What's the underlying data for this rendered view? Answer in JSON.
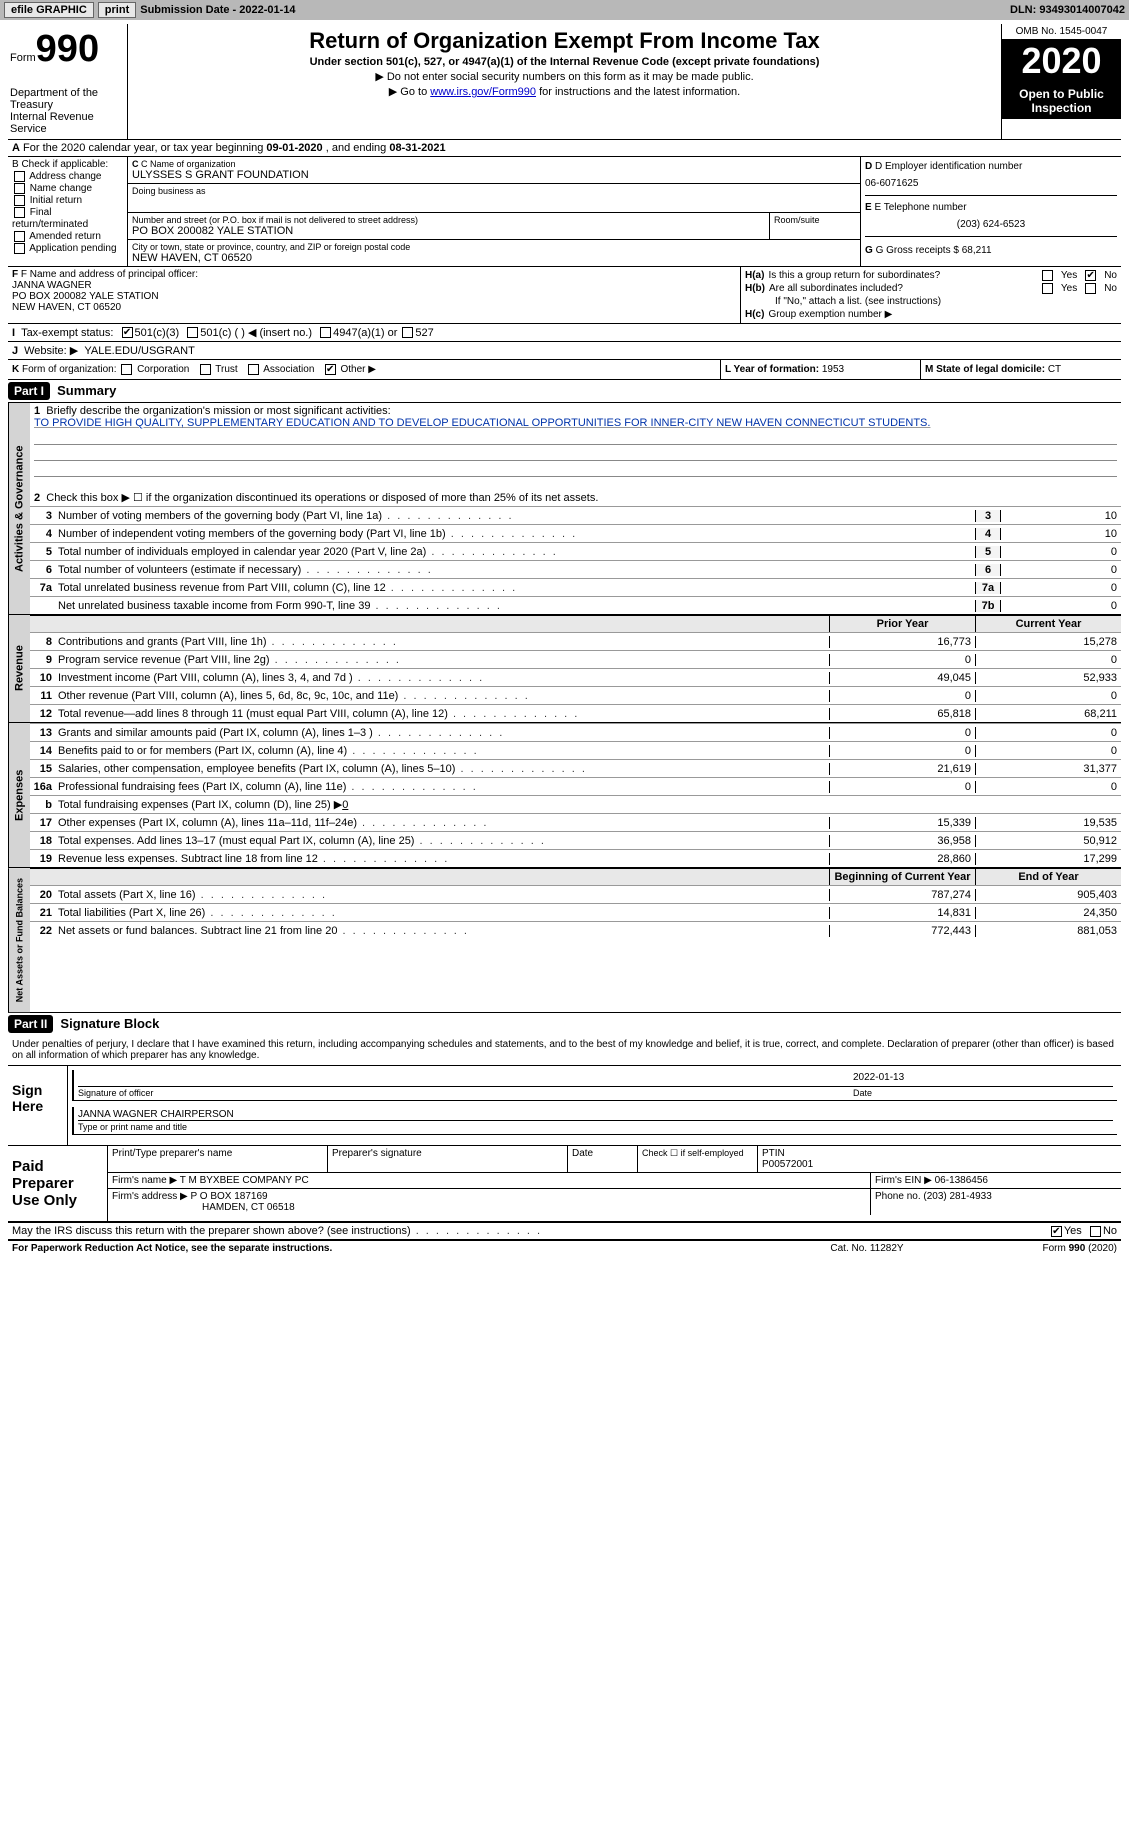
{
  "topbar": {
    "efile": "efile GRAPHIC",
    "print": "print",
    "submission_label": "Submission Date - ",
    "submission_date": "2022-01-14",
    "dln_label": "DLN: ",
    "dln": "93493014007042"
  },
  "header": {
    "form_word": "Form",
    "form_num": "990",
    "dept": "Department of the Treasury\nInternal Revenue Service",
    "title": "Return of Organization Exempt From Income Tax",
    "sub1": "Under section 501(c), 527, or 4947(a)(1) of the Internal Revenue Code (except private foundations)",
    "sub2": "▶ Do not enter social security numbers on this form as it may be made public.",
    "sub3_pre": "▶ Go to ",
    "sub3_link": "www.irs.gov/Form990",
    "sub3_post": " for instructions and the latest information.",
    "omb_label": "OMB No. ",
    "omb": "1545-0047",
    "year": "2020",
    "inspect": "Open to Public Inspection"
  },
  "row_a": {
    "a_bold": "A",
    "text1": " For the 2020 calendar year, or tax year beginning ",
    "begin": "09-01-2020",
    "text2": " , and ending ",
    "end": "08-31-2021"
  },
  "col_b": {
    "hdr": "B Check if applicable:",
    "items": [
      "Address change",
      "Name change",
      "Initial return",
      "Final return/terminated",
      "Amended return",
      "Application pending"
    ]
  },
  "col_c": {
    "name_lbl": "C Name of organization",
    "name": "ULYSSES S GRANT FOUNDATION",
    "dba_lbl": "Doing business as",
    "dba": "",
    "street_lbl": "Number and street (or P.O. box if mail is not delivered to street address)",
    "room_lbl": "Room/suite",
    "street": "PO BOX 200082 YALE STATION",
    "city_lbl": "City or town, state or province, country, and ZIP or foreign postal code",
    "city": "NEW HAVEN, CT  06520"
  },
  "col_d": {
    "ein_lbl": "D Employer identification number",
    "ein": "06-6071625",
    "phone_lbl": "E Telephone number",
    "phone": "(203) 624-6523",
    "gross_lbl": "G Gross receipts $ ",
    "gross": "68,211"
  },
  "row_fh": {
    "f_lbl": "F Name and address of principal officer:",
    "f_name": "JANNA WAGNER",
    "f_addr1": "PO BOX 200082 YALE STATION",
    "f_addr2": "NEW HAVEN, CT  06520",
    "h_a": "H(a)",
    "h_a_txt": "Is this a group return for subordinates?",
    "h_b": "H(b)",
    "h_b_txt": "Are all subordinates included?",
    "h_note": "If \"No,\" attach a list. (see instructions)",
    "h_c": "H(c)",
    "h_c_txt": "Group exemption number ▶",
    "yes": "Yes",
    "no": "No"
  },
  "row_i": {
    "lbl": "I",
    "txt": "Tax-exempt status:",
    "opt1": "501(c)(3)",
    "opt2": "501(c) (   ) ◀ (insert no.)",
    "opt3": "4947(a)(1) or",
    "opt4": "527"
  },
  "row_j": {
    "lbl": "J",
    "txt": "Website: ▶",
    "val": "YALE.EDU/USGRANT"
  },
  "row_k": {
    "lbl": "K",
    "txt": "Form of organization:",
    "opts": [
      "Corporation",
      "Trust",
      "Association",
      "Other ▶"
    ],
    "l_lbl": "L Year of formation: ",
    "l_val": "1953",
    "m_lbl": "M State of legal domicile: ",
    "m_val": "CT"
  },
  "part1": {
    "hdr": "Part I",
    "title": "Summary",
    "side_gov": "Activities & Governance",
    "side_rev": "Revenue",
    "side_exp": "Expenses",
    "side_net": "Net Assets or Fund Balances",
    "q1": "Briefly describe the organization's mission or most significant activities:",
    "mission": "TO PROVIDE HIGH QUALITY, SUPPLEMENTARY EDUCATION AND TO DEVELOP EDUCATIONAL OPPORTUNITIES FOR INNER-CITY NEW HAVEN CONNECTICUT STUDENTS.",
    "q2": "Check this box ▶ ☐ if the organization discontinued its operations or disposed of more than 25% of its net assets.",
    "lines_gov": [
      {
        "n": "3",
        "d": "Number of voting members of the governing body (Part VI, line 1a)",
        "c": "3",
        "v": "10"
      },
      {
        "n": "4",
        "d": "Number of independent voting members of the governing body (Part VI, line 1b)",
        "c": "4",
        "v": "10"
      },
      {
        "n": "5",
        "d": "Total number of individuals employed in calendar year 2020 (Part V, line 2a)",
        "c": "5",
        "v": "0"
      },
      {
        "n": "6",
        "d": "Total number of volunteers (estimate if necessary)",
        "c": "6",
        "v": "0"
      },
      {
        "n": "7a",
        "d": "Total unrelated business revenue from Part VIII, column (C), line 12",
        "c": "7a",
        "v": "0"
      },
      {
        "n": "",
        "d": "Net unrelated business taxable income from Form 990-T, line 39",
        "c": "7b",
        "v": "0"
      }
    ],
    "col_prior": "Prior Year",
    "col_current": "Current Year",
    "lines_rev": [
      {
        "n": "8",
        "d": "Contributions and grants (Part VIII, line 1h)",
        "p": "16,773",
        "c": "15,278"
      },
      {
        "n": "9",
        "d": "Program service revenue (Part VIII, line 2g)",
        "p": "0",
        "c": "0"
      },
      {
        "n": "10",
        "d": "Investment income (Part VIII, column (A), lines 3, 4, and 7d )",
        "p": "49,045",
        "c": "52,933"
      },
      {
        "n": "11",
        "d": "Other revenue (Part VIII, column (A), lines 5, 6d, 8c, 9c, 10c, and 11e)",
        "p": "0",
        "c": "0"
      },
      {
        "n": "12",
        "d": "Total revenue—add lines 8 through 11 (must equal Part VIII, column (A), line 12)",
        "p": "65,818",
        "c": "68,211"
      }
    ],
    "lines_exp": [
      {
        "n": "13",
        "d": "Grants and similar amounts paid (Part IX, column (A), lines 1–3 )",
        "p": "0",
        "c": "0"
      },
      {
        "n": "14",
        "d": "Benefits paid to or for members (Part IX, column (A), line 4)",
        "p": "0",
        "c": "0"
      },
      {
        "n": "15",
        "d": "Salaries, other compensation, employee benefits (Part IX, column (A), lines 5–10)",
        "p": "21,619",
        "c": "31,377"
      },
      {
        "n": "16a",
        "d": "Professional fundraising fees (Part IX, column (A), line 11e)",
        "p": "0",
        "c": "0"
      }
    ],
    "line_b": {
      "n": "b",
      "d": "Total fundraising expenses (Part IX, column (D), line 25) ▶",
      "v": "0"
    },
    "lines_exp2": [
      {
        "n": "17",
        "d": "Other expenses (Part IX, column (A), lines 11a–11d, 11f–24e)",
        "p": "15,339",
        "c": "19,535"
      },
      {
        "n": "18",
        "d": "Total expenses. Add lines 13–17 (must equal Part IX, column (A), line 25)",
        "p": "36,958",
        "c": "50,912"
      },
      {
        "n": "19",
        "d": "Revenue less expenses. Subtract line 18 from line 12",
        "p": "28,860",
        "c": "17,299"
      }
    ],
    "col_begin": "Beginning of Current Year",
    "col_end": "End of Year",
    "lines_net": [
      {
        "n": "20",
        "d": "Total assets (Part X, line 16)",
        "p": "787,274",
        "c": "905,403"
      },
      {
        "n": "21",
        "d": "Total liabilities (Part X, line 26)",
        "p": "14,831",
        "c": "24,350"
      },
      {
        "n": "22",
        "d": "Net assets or fund balances. Subtract line 21 from line 20",
        "p": "772,443",
        "c": "881,053"
      }
    ]
  },
  "part2": {
    "hdr": "Part II",
    "title": "Signature Block",
    "text": "Under penalties of perjury, I declare that I have examined this return, including accompanying schedules and statements, and to the best of my knowledge and belief, it is true, correct, and complete. Declaration of preparer (other than officer) is based on all information of which preparer has any knowledge.",
    "sign_here": "Sign Here",
    "sig_officer": "Signature of officer",
    "date_lbl": "Date",
    "sig_date": "2022-01-13",
    "name_title": "JANNA WAGNER CHAIRPERSON",
    "name_title_lbl": "Type or print name and title",
    "paid": "Paid Preparer Use Only",
    "prep_name_lbl": "Print/Type preparer's name",
    "prep_sig_lbl": "Preparer's signature",
    "prep_date_lbl": "Date",
    "prep_chk": "Check ☐ if self-employed",
    "ptin_lbl": "PTIN",
    "ptin": "P00572001",
    "firm_name_lbl": "Firm's name    ▶ ",
    "firm_name": "T M BYXBEE COMPANY PC",
    "firm_ein_lbl": "Firm's EIN ▶ ",
    "firm_ein": "06-1386456",
    "firm_addr_lbl": "Firm's address ▶ ",
    "firm_addr1": "P O BOX 187169",
    "firm_addr2": "HAMDEN, CT  06518",
    "firm_phone_lbl": "Phone no. ",
    "firm_phone": "(203) 281-4933",
    "discuss": "May the IRS discuss this return with the preparer shown above? (see instructions)",
    "yes": "Yes",
    "no": "No"
  },
  "footer": {
    "left": "For Paperwork Reduction Act Notice, see the separate instructions.",
    "center": "Cat. No. 11282Y",
    "right": "Form 990 (2020)"
  }
}
